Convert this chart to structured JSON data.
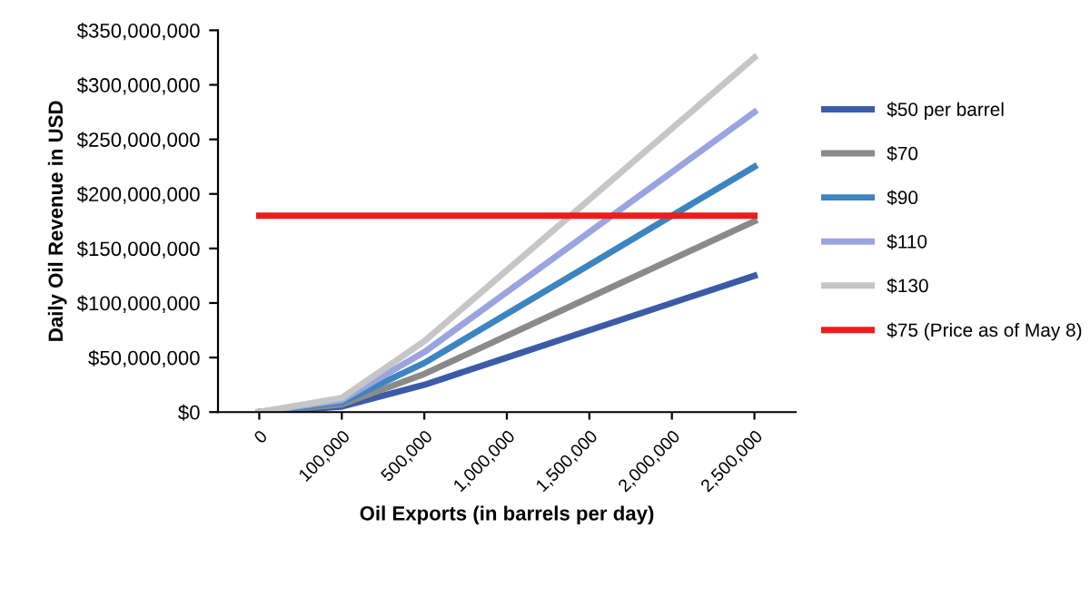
{
  "chart_data": {
    "type": "line",
    "xlabel": "Oil Exports (in barrels per day)",
    "ylabel": "Daily Oil Revenue in USD",
    "categories": [
      "0",
      "100,000",
      "500,000",
      "1,000,000",
      "1,500,000",
      "2,000,000",
      "2,500,000"
    ],
    "series": [
      {
        "name": "$50 per barrel",
        "color": "#3b5ba8",
        "values": [
          0,
          5000000,
          25000000,
          50000000,
          75000000,
          100000000,
          125000000
        ]
      },
      {
        "name": "$70",
        "color": "#8a8a8a",
        "values": [
          0,
          7000000,
          35000000,
          70000000,
          105000000,
          140000000,
          175000000
        ]
      },
      {
        "name": "$90",
        "color": "#3c85c0",
        "values": [
          0,
          9000000,
          45000000,
          90000000,
          135000000,
          180000000,
          225000000
        ]
      },
      {
        "name": "$110",
        "color": "#9aa5e0",
        "values": [
          0,
          11000000,
          55000000,
          110000000,
          165000000,
          220000000,
          275000000
        ]
      },
      {
        "name": "$130",
        "color": "#c6c6c6",
        "values": [
          0,
          13000000,
          65000000,
          130000000,
          195000000,
          260000000,
          325000000
        ]
      },
      {
        "name": "$75 (Price as of May 8)",
        "color": "#ee1c1c",
        "values": [
          180000000,
          180000000,
          180000000,
          180000000,
          180000000,
          180000000,
          180000000
        ]
      }
    ],
    "ylim": [
      0,
      350000000
    ],
    "yticks": [
      {
        "value": 0,
        "label": "$0"
      },
      {
        "value": 50000000,
        "label": "$50,000,000"
      },
      {
        "value": 100000000,
        "label": "$100,000,000"
      },
      {
        "value": 150000000,
        "label": "$150,000,000"
      },
      {
        "value": 200000000,
        "label": "$200,000,000"
      },
      {
        "value": 250000000,
        "label": "$250,000,000"
      },
      {
        "value": 300000000,
        "label": "$300,000,000"
      },
      {
        "value": 350000000,
        "label": "$350,000,000"
      }
    ],
    "grid": false,
    "legend": "right",
    "marker": "none",
    "line_style": "solid"
  }
}
